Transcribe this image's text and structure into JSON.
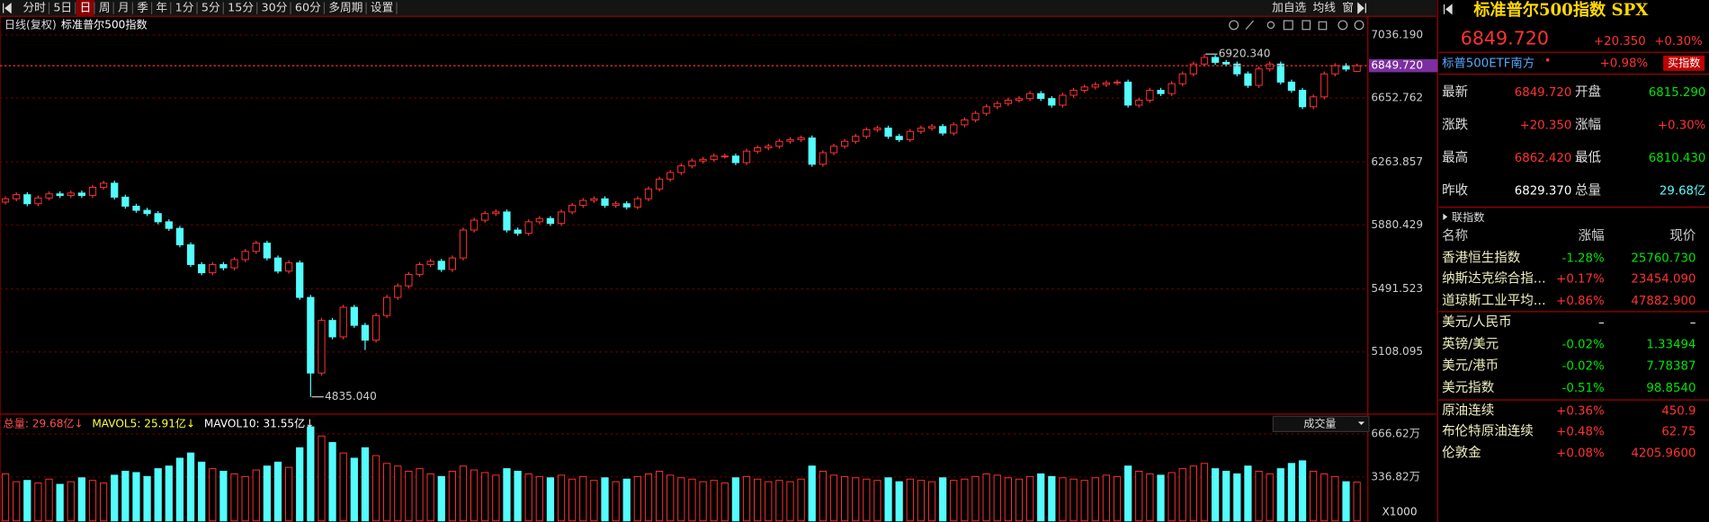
{
  "toolbar": {
    "periods": [
      "分时",
      "5日",
      "日",
      "周",
      "月",
      "季",
      "年",
      "1分",
      "5分",
      "15分",
      "30分",
      "60分",
      "多周期",
      "设置"
    ],
    "tools": [
      "加自选",
      "均线",
      "窗"
    ]
  },
  "chart_data": [
    {
      "type": "candlestick",
      "title": "标准普尔500指数",
      "subtitle": "日线(复权)",
      "up_color": "#ff3232",
      "down_color": "#54fcfc",
      "open": [
        6020,
        6040,
        6065,
        6010,
        6045,
        6070,
        6060,
        6075,
        6060,
        6110,
        6135,
        6050,
        5995,
        5970,
        5950,
        5900,
        5860,
        5760,
        5640,
        5590,
        5640,
        5620,
        5670,
        5720,
        5770,
        5680,
        5600,
        5650,
        5440,
        4980,
        5300,
        5200,
        5380,
        5270,
        5180,
        5330,
        5440,
        5510,
        5580,
        5640,
        5660,
        5610,
        5680,
        5850,
        5910,
        5950,
        5960,
        5850,
        5830,
        5900,
        5920,
        5890,
        5960,
        6000,
        6030,
        6040,
        6000,
        6010,
        5990,
        6040,
        6100,
        6160,
        6200,
        6240,
        6270,
        6280,
        6300,
        6300,
        6260,
        6330,
        6350,
        6360,
        6390,
        6400,
        6410,
        6250,
        6320,
        6360,
        6390,
        6420,
        6460,
        6470,
        6420,
        6400,
        6450,
        6470,
        6480,
        6440,
        6490,
        6520,
        6560,
        6600,
        6620,
        6640,
        6650,
        6680,
        6650,
        6610,
        6670,
        6700,
        6720,
        6735,
        6745,
        6750,
        6610,
        6640,
        6700,
        6680,
        6740,
        6800,
        6860,
        6900,
        6870,
        6860,
        6800,
        6730,
        6830,
        6860,
        6750,
        6700,
        6600,
        6660,
        6800,
        6850,
        6815.29
      ],
      "high": [
        6055,
        6080,
        6080,
        6060,
        6085,
        6085,
        6090,
        6090,
        6125,
        6150,
        6150,
        6065,
        6010,
        5985,
        5965,
        5915,
        5875,
        5775,
        5655,
        5655,
        5655,
        5685,
        5735,
        5785,
        5785,
        5695,
        5665,
        5665,
        5455,
        5315,
        5315,
        5395,
        5395,
        5285,
        5345,
        5455,
        5525,
        5595,
        5655,
        5675,
        5675,
        5695,
        5865,
        5925,
        5965,
        5975,
        5975,
        5865,
        5915,
        5935,
        5935,
        5975,
        6015,
        6045,
        6055,
        6055,
        6025,
        6025,
        6055,
        6115,
        6175,
        6215,
        6255,
        6285,
        6295,
        6315,
        6315,
        6315,
        6345,
        6365,
        6375,
        6405,
        6415,
        6425,
        6425,
        6335,
        6375,
        6405,
        6435,
        6475,
        6485,
        6485,
        6435,
        6465,
        6485,
        6495,
        6495,
        6505,
        6535,
        6575,
        6615,
        6635,
        6655,
        6665,
        6695,
        6695,
        6665,
        6685,
        6715,
        6735,
        6750,
        6760,
        6765,
        6765,
        6655,
        6715,
        6715,
        6755,
        6815,
        6875,
        6920.34,
        6915,
        6885,
        6875,
        6815,
        6845,
        6875,
        6875,
        6765,
        6715,
        6675,
        6815,
        6865,
        6865,
        6862.42
      ],
      "low": [
        6005,
        6025,
        5995,
        5995,
        6030,
        6045,
        6045,
        6045,
        6045,
        6095,
        6035,
        5980,
        5955,
        5935,
        5885,
        5845,
        5745,
        5625,
        5575,
        5575,
        5605,
        5605,
        5655,
        5705,
        5665,
        5585,
        5585,
        5425,
        4835.04,
        4965,
        5185,
        5185,
        5255,
        5120,
        5165,
        5315,
        5425,
        5495,
        5565,
        5625,
        5595,
        5595,
        5665,
        5835,
        5895,
        5935,
        5835,
        5815,
        5815,
        5885,
        5875,
        5875,
        5945,
        5985,
        6015,
        5985,
        5985,
        5975,
        5975,
        6025,
        6085,
        6145,
        6185,
        6225,
        6255,
        6265,
        6285,
        6245,
        6245,
        6315,
        6335,
        6345,
        6375,
        6385,
        6235,
        6235,
        6305,
        6345,
        6375,
        6405,
        6445,
        6405,
        6385,
        6385,
        6435,
        6455,
        6425,
        6425,
        6475,
        6505,
        6545,
        6585,
        6605,
        6625,
        6635,
        6635,
        6595,
        6595,
        6655,
        6685,
        6705,
        6720,
        6730,
        6595,
        6595,
        6625,
        6665,
        6665,
        6725,
        6785,
        6845,
        6855,
        6845,
        6785,
        6715,
        6715,
        6815,
        6735,
        6685,
        6585,
        6585,
        6645,
        6785,
        6815,
        6810.43
      ],
      "close": [
        6040,
        6065,
        6010,
        6045,
        6070,
        6060,
        6075,
        6060,
        6110,
        6135,
        6050,
        5995,
        5970,
        5950,
        5900,
        5860,
        5760,
        5640,
        5590,
        5640,
        5620,
        5670,
        5720,
        5770,
        5680,
        5600,
        5650,
        5440,
        4980,
        5300,
        5200,
        5380,
        5270,
        5180,
        5330,
        5440,
        5510,
        5580,
        5640,
        5660,
        5610,
        5680,
        5850,
        5910,
        5950,
        5960,
        5850,
        5830,
        5900,
        5920,
        5890,
        5960,
        6000,
        6030,
        6040,
        6000,
        6010,
        5990,
        6040,
        6100,
        6160,
        6200,
        6240,
        6270,
        6280,
        6300,
        6300,
        6260,
        6330,
        6350,
        6360,
        6390,
        6400,
        6410,
        6250,
        6320,
        6360,
        6390,
        6420,
        6460,
        6470,
        6420,
        6400,
        6450,
        6470,
        6480,
        6440,
        6490,
        6520,
        6560,
        6600,
        6620,
        6640,
        6650,
        6680,
        6650,
        6610,
        6670,
        6700,
        6720,
        6735,
        6745,
        6750,
        6610,
        6640,
        6700,
        6680,
        6740,
        6800,
        6860,
        6900,
        6870,
        6860,
        6800,
        6730,
        6830,
        6860,
        6750,
        6700,
        6600,
        6660,
        6800,
        6850,
        6829.37,
        6849.72
      ],
      "ylim": [
        4730,
        7150
      ],
      "yticks": [
        {
          "value": 7036.19,
          "label": "7036.190"
        },
        {
          "value": 6652.762,
          "label": "6652.762"
        },
        {
          "value": 6263.857,
          "label": "6263.857"
        },
        {
          "value": 5880.429,
          "label": "5880.429"
        },
        {
          "value": 5491.523,
          "label": "5491.523"
        },
        {
          "value": 5108.095,
          "label": "5108.095"
        }
      ],
      "grid": true,
      "last_price": {
        "value": 6849.72,
        "label": "6849.720"
      },
      "annotations": [
        {
          "value": 6920.34,
          "label": "6920.340"
        },
        {
          "value": 4835.04,
          "label": "4835.040"
        }
      ]
    },
    {
      "type": "bar",
      "title": "成交量",
      "unit_label": "X1000",
      "legend": [
        {
          "text": "总量: 29.68亿↓",
          "color": "#ff5050"
        },
        {
          "text": "MAVOL5: 25.91亿↓",
          "color": "#ffff40"
        },
        {
          "text": "MAVOL10: 31.55亿↓",
          "color": "#ffffff"
        }
      ],
      "values": [
        360,
        300,
        310,
        290,
        320,
        280,
        300,
        330,
        310,
        290,
        350,
        380,
        370,
        340,
        400,
        420,
        480,
        520,
        450,
        400,
        380,
        360,
        340,
        390,
        420,
        450,
        410,
        560,
        720,
        650,
        600,
        520,
        480,
        560,
        500,
        440,
        420,
        380,
        400,
        360,
        340,
        380,
        420,
        390,
        370,
        350,
        400,
        380,
        360,
        340,
        330,
        350,
        320,
        340,
        310,
        330,
        300,
        320,
        340,
        360,
        380,
        350,
        330,
        320,
        300,
        310,
        290,
        330,
        340,
        320,
        300,
        310,
        300,
        320,
        420,
        380,
        350,
        340,
        330,
        320,
        310,
        330,
        300,
        320,
        310,
        300,
        330,
        310,
        320,
        340,
        360,
        350,
        330,
        320,
        340,
        360,
        340,
        330,
        320,
        310,
        330,
        350,
        340,
        420,
        380,
        360,
        350,
        370,
        400,
        420,
        440,
        400,
        380,
        360,
        420,
        380,
        360,
        400,
        440,
        460,
        380,
        360,
        340,
        300,
        296.8
      ],
      "ylim": [
        0,
        734
      ],
      "yticks": [
        {
          "value": 666.62,
          "label": "666.62万"
        },
        {
          "value": 336.82,
          "label": "336.82万"
        }
      ]
    }
  ],
  "quote": {
    "name": "标准普尔500指数 SPX",
    "price": "6849.720",
    "change": "+20.350",
    "change_pct": "+0.30%",
    "etf": {
      "name": "标普500ETF南方",
      "change": "+0.98%",
      "button": "买指数"
    },
    "stats": [
      [
        {
          "label": "最新",
          "value": "6849.720",
          "color": "#ff3232"
        },
        {
          "label": "开盘",
          "value": "6815.290",
          "color": "#00e600"
        }
      ],
      [
        {
          "label": "涨跌",
          "value": "+20.350",
          "color": "#ff3232"
        },
        {
          "label": "涨幅",
          "value": "+0.30%",
          "color": "#ff3232"
        }
      ],
      [
        {
          "label": "最高",
          "value": "6862.420",
          "color": "#ff3232"
        },
        {
          "label": "最低",
          "value": "6810.430",
          "color": "#00e600"
        }
      ],
      [
        {
          "label": "昨收",
          "value": "6829.370",
          "color": "#ffffff"
        },
        {
          "label": "总量",
          "value": "29.68亿",
          "color": "#54fcfc"
        }
      ]
    ]
  },
  "related": {
    "title": "联指数",
    "columns": [
      "名称",
      "涨幅",
      "现价"
    ],
    "rows": [
      {
        "name": "香港恒生指数",
        "change": "-1.28%",
        "price": "25760.730",
        "color": "#00e600"
      },
      {
        "name": "纳斯达克综合指...",
        "change": "+0.17%",
        "price": "23454.090",
        "color": "#ff3232"
      },
      {
        "name": "道琼斯工业平均...",
        "change": "+0.86%",
        "price": "47882.900",
        "color": "#ff3232"
      },
      {
        "name": "美元/人民币",
        "change": "–",
        "price": "–",
        "color": "#ffffff"
      },
      {
        "name": "英镑/美元",
        "change": "-0.02%",
        "price": "1.33494",
        "color": "#00e600"
      },
      {
        "name": "美元/港币",
        "change": "-0.02%",
        "price": "7.78387",
        "color": "#00e600"
      },
      {
        "name": "美元指数",
        "change": "-0.51%",
        "price": "98.8540",
        "color": "#00e600"
      },
      {
        "name": "原油连续",
        "change": "+0.36%",
        "price": "450.9",
        "color": "#ff3232"
      },
      {
        "name": "布伦特原油连续",
        "change": "+0.48%",
        "price": "62.75",
        "color": "#ff3232"
      },
      {
        "name": "伦敦金",
        "change": "+0.08%",
        "price": "4205.9600",
        "color": "#ff3232"
      }
    ]
  }
}
